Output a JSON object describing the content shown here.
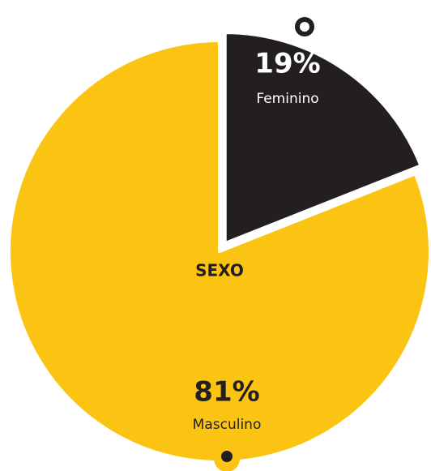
{
  "chart_data": {
    "type": "pie",
    "title": "SEXO",
    "categories": [
      "Feminino",
      "Masculino"
    ],
    "values": [
      19,
      81
    ],
    "value_labels": [
      "19%",
      "81%"
    ],
    "colors": [
      "#231f20",
      "#fcc412"
    ]
  }
}
